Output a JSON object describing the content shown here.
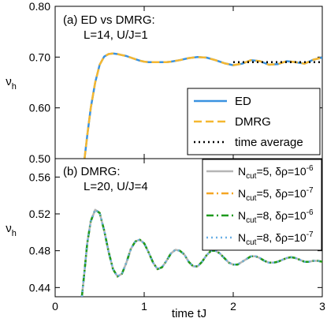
{
  "chart_data": [
    {
      "panel": "a",
      "type": "line",
      "annotation": [
        "(a) ED vs DMRG:",
        "L=14, U/J=1"
      ],
      "ylabel": "ν",
      "ylabel_sub": "h",
      "xlim": [
        0,
        3
      ],
      "ylim": [
        0.5,
        0.8
      ],
      "yticks": [
        "0.50",
        "0.60",
        "0.70",
        "0.80"
      ],
      "legend_position": "lower-right",
      "series": [
        {
          "name": "ED",
          "color": "#3a92e0",
          "style": "solid",
          "x": [
            0.33,
            0.36,
            0.4,
            0.45,
            0.5,
            0.55,
            0.6,
            0.65,
            0.7,
            0.75,
            0.8,
            0.85,
            0.9,
            0.95,
            1.0,
            1.05,
            1.1,
            1.15,
            1.2,
            1.25,
            1.3,
            1.4,
            1.5,
            1.6,
            1.7,
            1.8,
            1.9,
            2.0,
            2.1,
            2.2,
            2.3,
            2.4,
            2.5,
            2.6,
            2.7,
            2.8,
            2.9,
            3.0
          ],
          "y": [
            0.5,
            0.545,
            0.6,
            0.65,
            0.685,
            0.701,
            0.706,
            0.707,
            0.706,
            0.704,
            0.702,
            0.699,
            0.696,
            0.693,
            0.691,
            0.69,
            0.69,
            0.69,
            0.69,
            0.69,
            0.691,
            0.694,
            0.698,
            0.7,
            0.699,
            0.694,
            0.688,
            0.684,
            0.687,
            0.694,
            0.692,
            0.685,
            0.686,
            0.692,
            0.69,
            0.687,
            0.695,
            0.699
          ]
        },
        {
          "name": "DMRG",
          "color": "#f5b730",
          "style": "dashed",
          "x": [
            0.33,
            0.36,
            0.4,
            0.45,
            0.5,
            0.55,
            0.6,
            0.65,
            0.7,
            0.75,
            0.8,
            0.85,
            0.9,
            0.95,
            1.0,
            1.05,
            1.1,
            1.15,
            1.2,
            1.25,
            1.3,
            1.4,
            1.5,
            1.6,
            1.7,
            1.8,
            1.9,
            2.0,
            2.1,
            2.2,
            2.3,
            2.4,
            2.5,
            2.6,
            2.7,
            2.8,
            2.9,
            3.0
          ],
          "y": [
            0.5,
            0.545,
            0.6,
            0.65,
            0.685,
            0.701,
            0.706,
            0.707,
            0.706,
            0.704,
            0.702,
            0.699,
            0.696,
            0.693,
            0.691,
            0.69,
            0.69,
            0.69,
            0.69,
            0.69,
            0.691,
            0.694,
            0.698,
            0.7,
            0.699,
            0.694,
            0.688,
            0.684,
            0.687,
            0.694,
            0.692,
            0.685,
            0.686,
            0.692,
            0.69,
            0.687,
            0.695,
            0.699
          ]
        },
        {
          "name": "time average",
          "color": "#000000",
          "style": "dotted",
          "x": [
            2.0,
            3.0
          ],
          "y": [
            0.69,
            0.69
          ]
        }
      ]
    },
    {
      "panel": "b",
      "type": "line",
      "annotation": [
        "(b) DMRG:",
        "L=20, U/J=4"
      ],
      "xlabel": "time tJ",
      "ylabel": "ν",
      "ylabel_sub": "h",
      "xlim": [
        0,
        3
      ],
      "ylim": [
        0.43,
        0.58
      ],
      "xticks": [
        "0",
        "1",
        "2",
        "3"
      ],
      "yticks": [
        "0.44",
        "0.48",
        "0.52",
        "0.56"
      ],
      "legend_position": "upper-right",
      "x": [
        0.3,
        0.33,
        0.36,
        0.4,
        0.45,
        0.5,
        0.55,
        0.6,
        0.65,
        0.7,
        0.75,
        0.8,
        0.85,
        0.9,
        0.95,
        1.0,
        1.05,
        1.1,
        1.15,
        1.2,
        1.25,
        1.3,
        1.35,
        1.4,
        1.45,
        1.5,
        1.55,
        1.6,
        1.65,
        1.7,
        1.75,
        1.8,
        1.85,
        1.9,
        1.95,
        2.0,
        2.05,
        2.1,
        2.15,
        2.2,
        2.25,
        2.3,
        2.35,
        2.4,
        2.45,
        2.5,
        2.55,
        2.6,
        2.65,
        2.7,
        2.75,
        2.8,
        2.85,
        2.9,
        2.95,
        3.0
      ],
      "series": [
        {
          "name": "N_cut=5, δρ=10^-6",
          "legend": {
            "sym": "N",
            "sub": "cut",
            "mid": "=5, δρ=10",
            "sup": "-6"
          },
          "color": "#b5b5b5",
          "style": "solid",
          "y": [
            0.43,
            0.458,
            0.488,
            0.512,
            0.5245,
            0.521,
            0.502,
            0.479,
            0.46,
            0.452,
            0.455,
            0.467,
            0.482,
            0.49,
            0.492,
            0.488,
            0.478,
            0.467,
            0.46,
            0.462,
            0.469,
            0.477,
            0.481,
            0.48,
            0.476,
            0.468,
            0.463,
            0.463,
            0.468,
            0.475,
            0.48,
            0.48,
            0.477,
            0.472,
            0.467,
            0.465,
            0.465,
            0.468,
            0.471,
            0.474,
            0.474,
            0.472,
            0.469,
            0.467,
            0.467,
            0.468,
            0.47,
            0.472,
            0.473,
            0.472,
            0.47,
            0.468,
            0.468,
            0.469,
            0.469,
            0.468
          ]
        },
        {
          "name": "N_cut=5, δρ=10^-7",
          "legend": {
            "sym": "N",
            "sub": "cut",
            "mid": "=5, δρ=10",
            "sup": "-7"
          },
          "color": "#f5a623",
          "style": "dashdot",
          "y": [
            0.43,
            0.458,
            0.488,
            0.512,
            0.5245,
            0.521,
            0.502,
            0.479,
            0.46,
            0.452,
            0.455,
            0.467,
            0.482,
            0.49,
            0.492,
            0.488,
            0.478,
            0.467,
            0.46,
            0.462,
            0.469,
            0.477,
            0.481,
            0.48,
            0.476,
            0.468,
            0.463,
            0.463,
            0.468,
            0.475,
            0.48,
            0.48,
            0.477,
            0.472,
            0.467,
            0.465,
            0.465,
            0.468,
            0.471,
            0.474,
            0.474,
            0.472,
            0.469,
            0.467,
            0.467,
            0.468,
            0.47,
            0.472,
            0.473,
            0.472,
            0.47,
            0.468,
            0.468,
            0.469,
            0.469,
            0.468
          ]
        },
        {
          "name": "N_cut=8, δρ=10^-6",
          "legend": {
            "sym": "N",
            "sub": "cut",
            "mid": "=8, δρ=10",
            "sup": "-6"
          },
          "color": "#1e9a1e",
          "style": "dashdot",
          "y": [
            0.43,
            0.458,
            0.488,
            0.512,
            0.5245,
            0.521,
            0.502,
            0.479,
            0.46,
            0.452,
            0.455,
            0.467,
            0.482,
            0.49,
            0.492,
            0.488,
            0.478,
            0.467,
            0.46,
            0.462,
            0.469,
            0.477,
            0.481,
            0.48,
            0.476,
            0.468,
            0.463,
            0.463,
            0.468,
            0.475,
            0.48,
            0.48,
            0.477,
            0.472,
            0.467,
            0.465,
            0.465,
            0.468,
            0.471,
            0.474,
            0.474,
            0.472,
            0.469,
            0.467,
            0.467,
            0.468,
            0.47,
            0.472,
            0.473,
            0.472,
            0.47,
            0.468,
            0.468,
            0.469,
            0.469,
            0.468
          ]
        },
        {
          "name": "N_cut=8, δρ=10^-7",
          "legend": {
            "sym": "N",
            "sub": "cut",
            "mid": "=8, δρ=10",
            "sup": "-7"
          },
          "color": "#6ab0e6",
          "style": "dotted",
          "y": [
            0.43,
            0.458,
            0.488,
            0.512,
            0.5245,
            0.521,
            0.502,
            0.479,
            0.46,
            0.452,
            0.455,
            0.467,
            0.482,
            0.49,
            0.492,
            0.488,
            0.478,
            0.467,
            0.46,
            0.462,
            0.469,
            0.477,
            0.481,
            0.48,
            0.476,
            0.468,
            0.463,
            0.463,
            0.468,
            0.475,
            0.48,
            0.48,
            0.477,
            0.472,
            0.467,
            0.465,
            0.465,
            0.468,
            0.471,
            0.474,
            0.474,
            0.472,
            0.469,
            0.467,
            0.467,
            0.468,
            0.47,
            0.472,
            0.473,
            0.472,
            0.47,
            0.468,
            0.468,
            0.469,
            0.469,
            0.468
          ]
        }
      ]
    }
  ]
}
